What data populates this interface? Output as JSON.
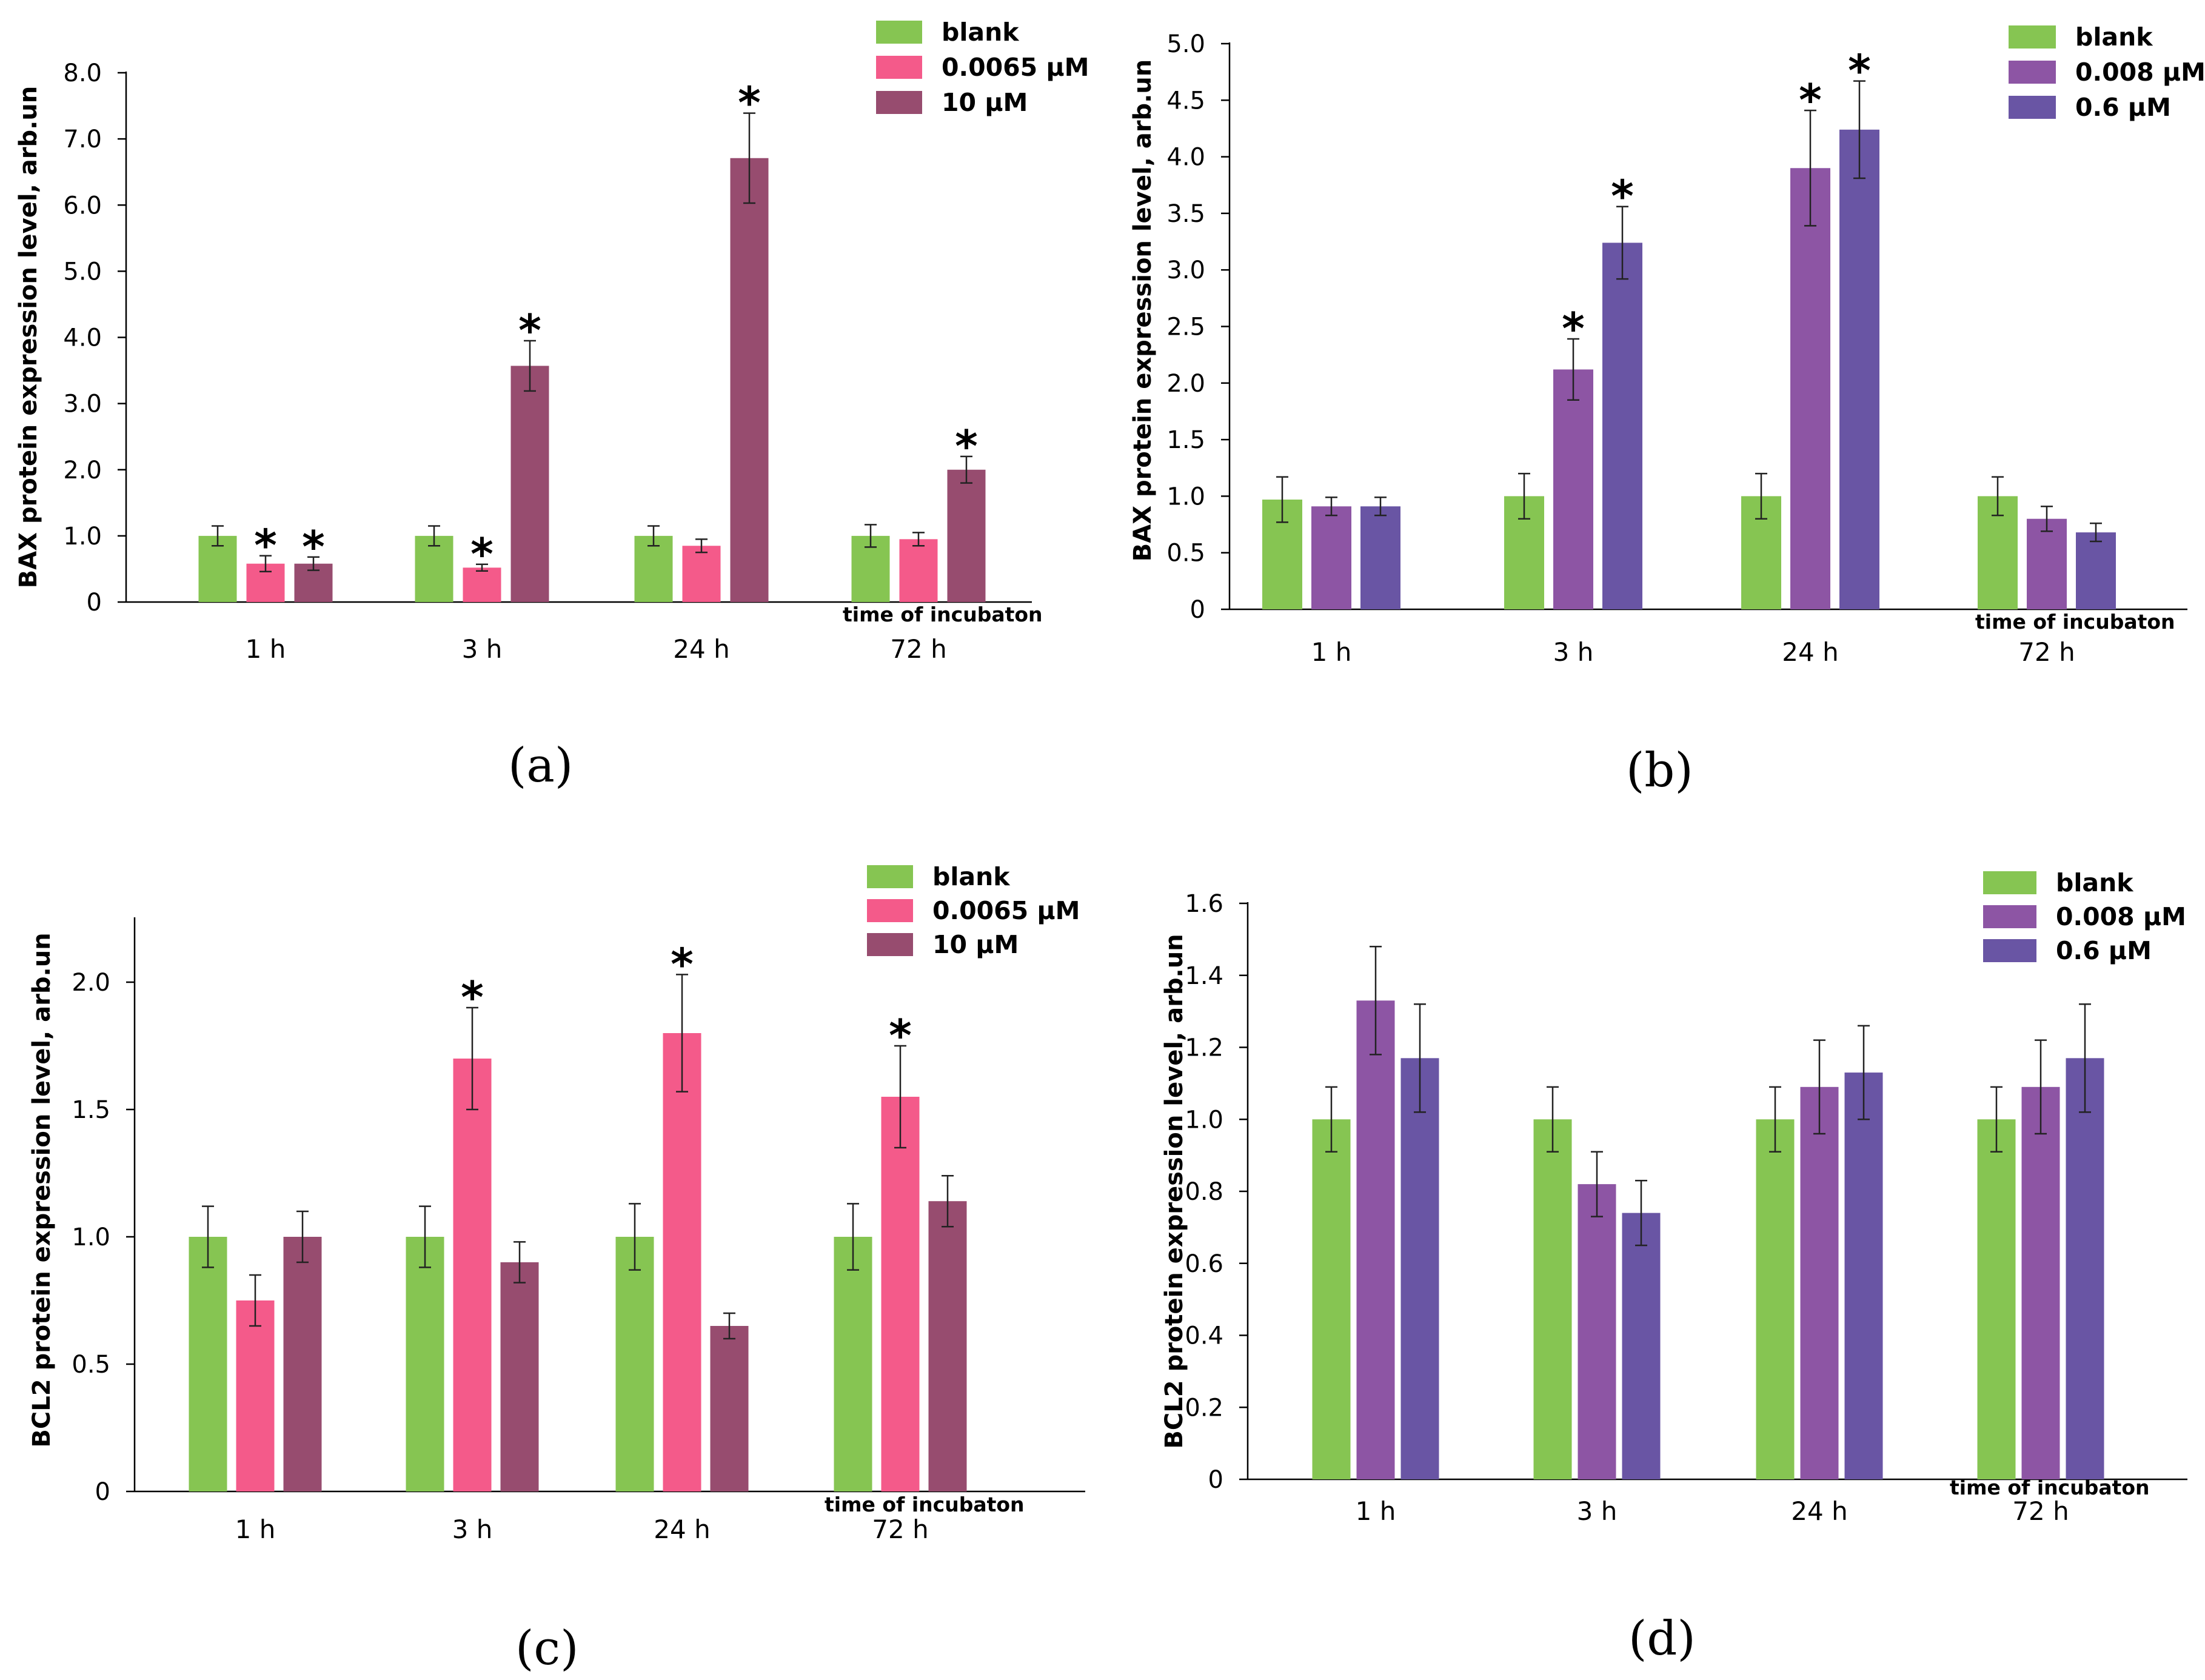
{
  "colors": {
    "blank": "#86c552",
    "low_a": "#f45a8a",
    "high_a": "#974c6f",
    "low_b": "#8d55a4",
    "high_b": "#6955a4"
  },
  "chart_data": [
    {
      "id": "a",
      "type": "bar",
      "panel_label": "(a)",
      "ylabel": "BAX protein expression level, arb.un",
      "xlabel": "time of incubaton",
      "ylim": [
        0,
        8
      ],
      "yticks": [
        "0",
        "1.0",
        "2.0",
        "3.0",
        "4.0",
        "5.0",
        "6.0",
        "7.0",
        "8.0"
      ],
      "ytick_values": [
        0,
        1,
        2,
        3,
        4,
        5,
        6,
        7,
        8
      ],
      "categories": [
        "1 h",
        "3 h",
        "24 h",
        "72 h"
      ],
      "series": [
        {
          "name": "blank",
          "color_key": "blank",
          "values": [
            1.0,
            1.0,
            1.0,
            1.0
          ],
          "errors": [
            0.15,
            0.15,
            0.15,
            0.17
          ],
          "significant": [
            false,
            false,
            false,
            false
          ]
        },
        {
          "name": "0.0065 μM",
          "color_key": "low_a",
          "values": [
            0.58,
            0.52,
            0.85,
            0.95
          ],
          "errors": [
            0.12,
            0.05,
            0.1,
            0.1
          ],
          "significant": [
            true,
            true,
            false,
            false
          ]
        },
        {
          "name": "10 μM",
          "color_key": "high_a",
          "values": [
            0.58,
            3.57,
            6.71,
            2.0
          ],
          "errors": [
            0.1,
            0.38,
            0.68,
            0.2
          ],
          "significant": [
            true,
            true,
            true,
            true
          ]
        }
      ],
      "star_symbol": "*"
    },
    {
      "id": "b",
      "type": "bar",
      "panel_label": "(b)",
      "ylabel": "BAX protein expression level, arb.un",
      "xlabel": "time of incubaton",
      "ylim": [
        0,
        5
      ],
      "yticks": [
        "0",
        "0.5",
        "1.0",
        "1.5",
        "2.0",
        "2.5",
        "3.0",
        "3.5",
        "4.0",
        "4.5",
        "5.0"
      ],
      "ytick_values": [
        0,
        0.5,
        1,
        1.5,
        2,
        2.5,
        3,
        3.5,
        4,
        4.5,
        5
      ],
      "categories": [
        "1 h",
        "3 h",
        "24 h",
        "72 h"
      ],
      "series": [
        {
          "name": "blank",
          "color_key": "blank",
          "values": [
            0.97,
            1.0,
            1.0,
            1.0
          ],
          "errors": [
            0.2,
            0.2,
            0.2,
            0.17
          ],
          "significant": [
            false,
            false,
            false,
            false
          ]
        },
        {
          "name": "0.008 μM",
          "color_key": "low_b",
          "values": [
            0.91,
            2.12,
            3.9,
            0.8
          ],
          "errors": [
            0.08,
            0.27,
            0.51,
            0.11
          ],
          "significant": [
            false,
            true,
            true,
            false
          ]
        },
        {
          "name": "0.6 μM",
          "color_key": "high_b",
          "values": [
            0.91,
            3.24,
            4.24,
            0.68
          ],
          "errors": [
            0.08,
            0.32,
            0.43,
            0.08
          ],
          "significant": [
            false,
            true,
            true,
            false
          ]
        }
      ],
      "star_symbol": "*"
    },
    {
      "id": "c",
      "type": "bar",
      "panel_label": "(c)",
      "ylabel": "BCL2 protein expression level, arb.un",
      "xlabel": "time of incubaton",
      "ylim": [
        0,
        2.25
      ],
      "yticks": [
        "0",
        "0.5",
        "1.0",
        "1.5",
        "2.0"
      ],
      "ytick_values": [
        0,
        0.5,
        1,
        1.5,
        2
      ],
      "categories": [
        "1 h",
        "3 h",
        "24 h",
        "72 h"
      ],
      "series": [
        {
          "name": "blank",
          "color_key": "blank",
          "values": [
            1.0,
            1.0,
            1.0,
            1.0
          ],
          "errors": [
            0.12,
            0.12,
            0.13,
            0.13
          ],
          "significant": [
            false,
            false,
            false,
            false
          ]
        },
        {
          "name": "0.0065 μM",
          "color_key": "low_a",
          "values": [
            0.75,
            1.7,
            1.8,
            1.55
          ],
          "errors": [
            0.1,
            0.2,
            0.23,
            0.2
          ],
          "significant": [
            false,
            true,
            true,
            true
          ]
        },
        {
          "name": "10 μM",
          "color_key": "high_a",
          "values": [
            1.0,
            0.9,
            0.65,
            1.14
          ],
          "errors": [
            0.1,
            0.08,
            0.05,
            0.1
          ],
          "significant": [
            false,
            false,
            false,
            false
          ]
        }
      ],
      "star_symbol": "*"
    },
    {
      "id": "d",
      "type": "bar",
      "panel_label": "(d)",
      "ylabel": "BCL2 protein expression level, arb.un",
      "xlabel": "time of incubaton",
      "ylim": [
        0,
        1.6
      ],
      "yticks": [
        "0",
        "0.2",
        "0.4",
        "0.6",
        "0.8",
        "1.0",
        "1.2",
        "1.4",
        "1.6"
      ],
      "ytick_values": [
        0,
        0.2,
        0.4,
        0.6,
        0.8,
        1.0,
        1.2,
        1.4,
        1.6
      ],
      "categories": [
        "1 h",
        "3 h",
        "24 h",
        "72 h"
      ],
      "series": [
        {
          "name": "blank",
          "color_key": "blank",
          "values": [
            1.0,
            1.0,
            1.0,
            1.0
          ],
          "errors": [
            0.09,
            0.09,
            0.09,
            0.09
          ],
          "significant": [
            false,
            false,
            false,
            false
          ]
        },
        {
          "name": "0.008 μM",
          "color_key": "low_b",
          "values": [
            1.33,
            0.82,
            1.09,
            1.09
          ],
          "errors": [
            0.15,
            0.09,
            0.13,
            0.13
          ],
          "significant": [
            false,
            false,
            false,
            false
          ]
        },
        {
          "name": "0.6 μM",
          "color_key": "high_b",
          "values": [
            1.17,
            0.74,
            1.13,
            1.17
          ],
          "errors": [
            0.15,
            0.09,
            0.13,
            0.15
          ],
          "significant": [
            false,
            false,
            false,
            false
          ]
        }
      ],
      "star_symbol": "*"
    }
  ]
}
